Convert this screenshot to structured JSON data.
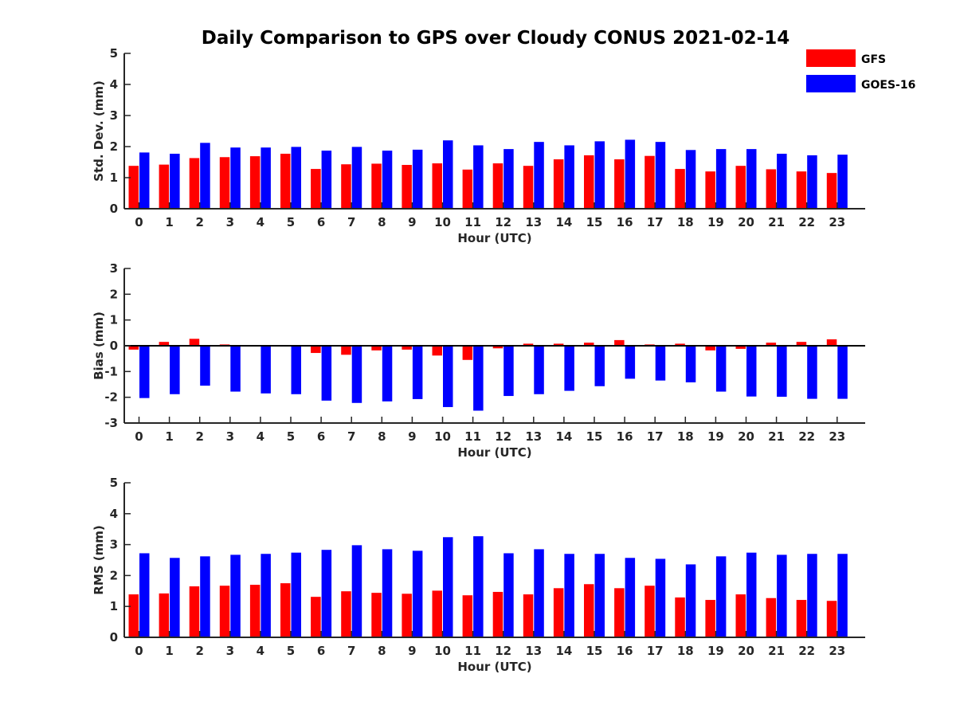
{
  "title": "Daily Comparison to GPS over Cloudy CONUS 2021-02-14",
  "colors": {
    "GFS": "#ff0000",
    "GOES-16": "#0000ff"
  },
  "legend": {
    "placement": "top-right",
    "entries": [
      "GFS",
      "GOES-16"
    ]
  },
  "chart_data": [
    {
      "type": "bar",
      "title": "Daily Comparison to GPS over Cloudy CONUS 2021-02-14",
      "xlabel": "Hour (UTC)",
      "ylabel": "Std. Dev. (mm)",
      "ylim": [
        0,
        5
      ],
      "yticks": [
        0,
        1,
        2,
        3,
        4,
        5
      ],
      "categories": [
        "0",
        "1",
        "2",
        "3",
        "4",
        "5",
        "6",
        "7",
        "8",
        "9",
        "10",
        "11",
        "12",
        "13",
        "14",
        "15",
        "16",
        "17",
        "18",
        "19",
        "20",
        "21",
        "22",
        "23"
      ],
      "series": [
        {
          "name": "GFS",
          "values": [
            1.38,
            1.42,
            1.63,
            1.66,
            1.69,
            1.77,
            1.28,
            1.43,
            1.45,
            1.41,
            1.46,
            1.26,
            1.46,
            1.38,
            1.59,
            1.72,
            1.59,
            1.7,
            1.28,
            1.2,
            1.38,
            1.27,
            1.2,
            1.15
          ]
        },
        {
          "name": "GOES-16",
          "values": [
            1.81,
            1.77,
            2.12,
            1.97,
            1.97,
            1.99,
            1.87,
            1.99,
            1.87,
            1.9,
            2.2,
            2.04,
            1.92,
            2.15,
            2.04,
            2.17,
            2.22,
            2.15,
            1.89,
            1.92,
            1.92,
            1.77,
            1.72,
            1.74
          ]
        }
      ]
    },
    {
      "type": "bar",
      "xlabel": "Hour (UTC)",
      "ylabel": "Bias (mm)",
      "ylim": [
        -3,
        3
      ],
      "yticks": [
        -3,
        -2,
        -1,
        0,
        1,
        2,
        3
      ],
      "categories": [
        "0",
        "1",
        "2",
        "3",
        "4",
        "5",
        "6",
        "7",
        "8",
        "9",
        "10",
        "11",
        "12",
        "13",
        "14",
        "15",
        "16",
        "17",
        "18",
        "19",
        "20",
        "21",
        "22",
        "23"
      ],
      "series": [
        {
          "name": "GFS",
          "values": [
            -0.15,
            0.15,
            0.27,
            0.05,
            -0.03,
            0.0,
            -0.28,
            -0.35,
            -0.18,
            -0.15,
            -0.38,
            -0.55,
            -0.1,
            0.08,
            0.08,
            0.12,
            0.22,
            0.05,
            0.08,
            -0.18,
            -0.12,
            0.12,
            0.15,
            0.25
          ]
        },
        {
          "name": "GOES-16",
          "values": [
            -2.03,
            -1.88,
            -1.55,
            -1.78,
            -1.85,
            -1.88,
            -2.13,
            -2.22,
            -2.16,
            -2.07,
            -2.38,
            -2.52,
            -1.95,
            -1.88,
            -1.75,
            -1.57,
            -1.28,
            -1.35,
            -1.42,
            -1.78,
            -1.97,
            -1.98,
            -2.06,
            -2.06
          ]
        }
      ]
    },
    {
      "type": "bar",
      "xlabel": "Hour (UTC)",
      "ylabel": "RMS (mm)",
      "ylim": [
        0,
        5
      ],
      "yticks": [
        0,
        1,
        2,
        3,
        4,
        5
      ],
      "categories": [
        "0",
        "1",
        "2",
        "3",
        "4",
        "5",
        "6",
        "7",
        "8",
        "9",
        "10",
        "11",
        "12",
        "13",
        "14",
        "15",
        "16",
        "17",
        "18",
        "19",
        "20",
        "21",
        "22",
        "23"
      ],
      "series": [
        {
          "name": "GFS",
          "values": [
            1.39,
            1.42,
            1.65,
            1.67,
            1.7,
            1.75,
            1.31,
            1.49,
            1.44,
            1.41,
            1.51,
            1.36,
            1.47,
            1.39,
            1.59,
            1.72,
            1.59,
            1.67,
            1.29,
            1.21,
            1.39,
            1.27,
            1.21,
            1.18
          ]
        },
        {
          "name": "GOES-16",
          "values": [
            2.72,
            2.57,
            2.62,
            2.67,
            2.7,
            2.74,
            2.83,
            2.98,
            2.85,
            2.8,
            3.24,
            3.27,
            2.72,
            2.85,
            2.7,
            2.7,
            2.57,
            2.54,
            2.36,
            2.62,
            2.74,
            2.67,
            2.7,
            2.7
          ]
        }
      ]
    }
  ]
}
